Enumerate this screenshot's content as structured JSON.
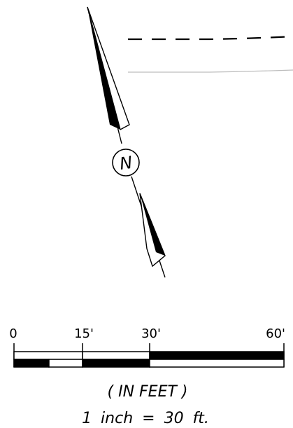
{
  "north_arrow": {
    "label": "N"
  },
  "scale_bar": {
    "ticks": [
      {
        "label": "0"
      },
      {
        "label": "15'"
      },
      {
        "label": "30'"
      },
      {
        "label": "60'"
      }
    ],
    "units_note": "( IN FEET )",
    "scale_note": "1 inch = 30 ft."
  },
  "colors": {
    "ink": "#000000",
    "paper": "#ffffff",
    "faint_line": "#bdbdbd"
  }
}
